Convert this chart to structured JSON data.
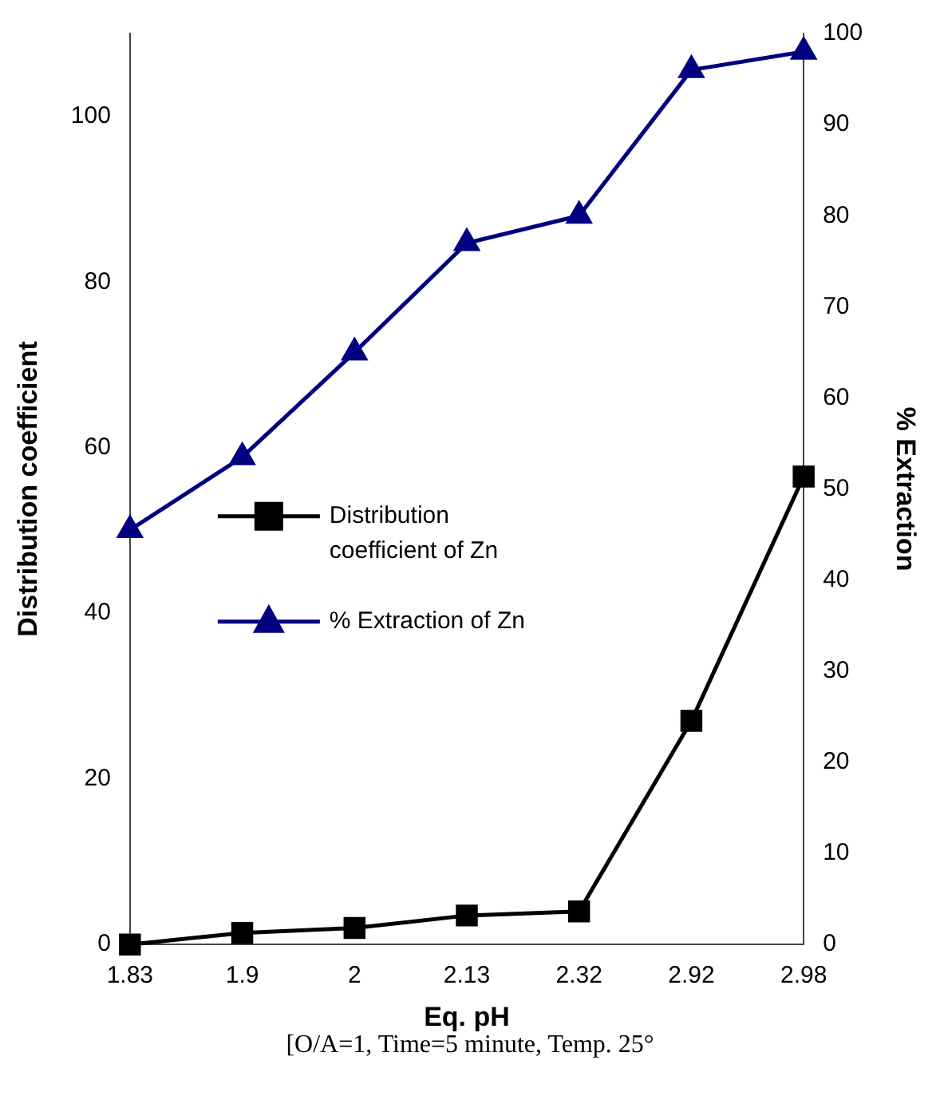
{
  "chart_data": {
    "type": "line",
    "xlabel": "Eq. pH",
    "ylabel": "Distribution coefficient",
    "y2label": "% Extraction",
    "categories": [
      "1.83",
      "1.9",
      "2",
      "2.13",
      "2.32",
      "2.92",
      "2.98"
    ],
    "series": [
      {
        "name": "Distribution coefficient of Zn",
        "color": "#000000",
        "marker": "square",
        "values": [
          0,
          1.4,
          2,
          3.5,
          4,
          27,
          56.5
        ]
      },
      {
        "name": "% Extraction of Zn",
        "color": "#000080",
        "marker": "triangle",
        "axis": "y2",
        "values": [
          45.5,
          53.5,
          65,
          77,
          80,
          96,
          98
        ]
      }
    ],
    "ylim": [
      0,
      110
    ],
    "yticks": [
      0,
      20,
      40,
      60,
      80,
      100
    ],
    "y2lim": [
      0,
      100
    ],
    "y2ticks": [
      0,
      10,
      20,
      30,
      40,
      50,
      60,
      70,
      80,
      90,
      100
    ],
    "grid": false,
    "legend": "center",
    "line_style": "solid",
    "annotations": [
      "[O/A=1, Time=5 minute, Temp. 25°"
    ]
  }
}
